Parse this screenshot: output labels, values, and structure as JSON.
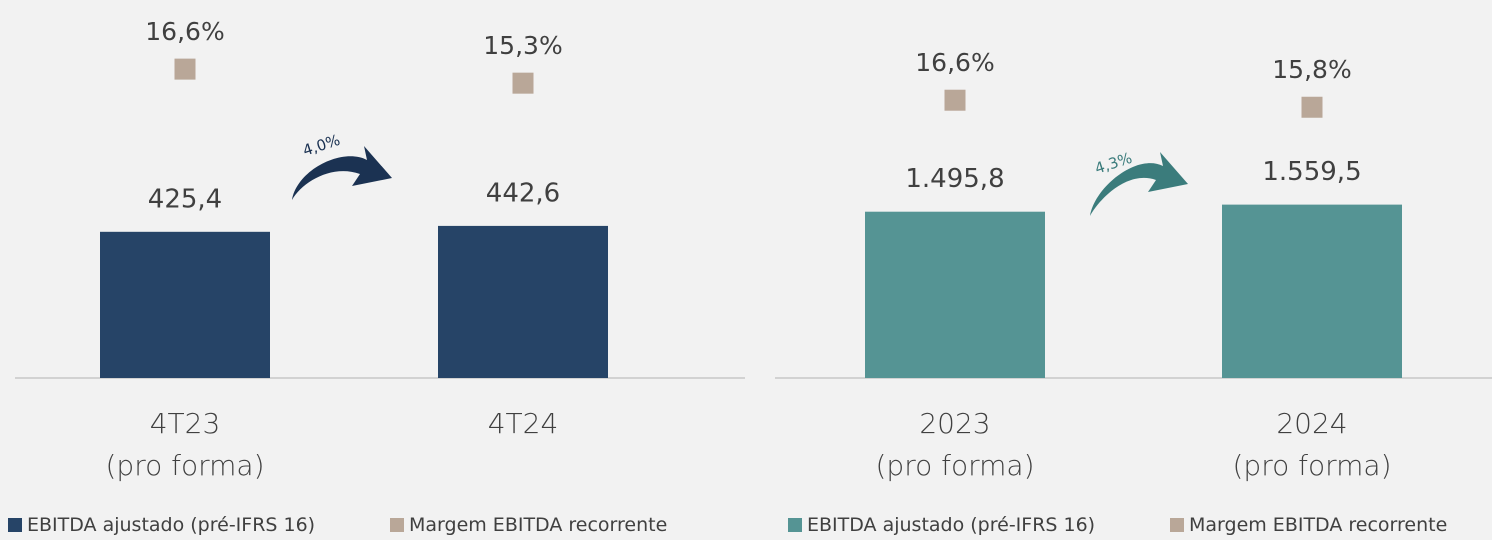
{
  "chart_data": [
    {
      "type": "bar",
      "categories": [
        "4T23\n(pro forma)",
        "4T24"
      ],
      "series": [
        {
          "name": "EBITDA ajustado (pré-IFRS 16)",
          "color": "#264467",
          "values": [
            425.4,
            442.6
          ],
          "value_labels": [
            "425,4",
            "442,6"
          ]
        },
        {
          "name": "Margem EBITDA recorrente",
          "color": "#b9a798",
          "values": [
            16.6,
            15.3
          ],
          "value_labels": [
            "16,6%",
            "15,3%"
          ],
          "axis": "y2",
          "marker": "square"
        }
      ],
      "ylim": [
        0,
        1100
      ],
      "y2lim": [
        -12,
        23
      ],
      "annotation": "4,0%",
      "annotation_color": "#1b3252",
      "legend": "bottom-left"
    },
    {
      "type": "bar",
      "categories": [
        "2023\n(pro forma)",
        "2024\n(pro forma)"
      ],
      "series": [
        {
          "name": "EBITDA ajustado (pré-IFRS 16)",
          "color": "#559494",
          "values": [
            1495.8,
            1559.5
          ],
          "value_labels": [
            "1.495,8",
            "1.559,5"
          ]
        },
        {
          "name": "Margem EBITDA recorrente",
          "color": "#b9a798",
          "values": [
            16.6,
            15.8
          ],
          "value_labels": [
            "16,6%",
            "15,8%"
          ],
          "axis": "y2",
          "marker": "square"
        }
      ],
      "ylim": [
        0,
        3400
      ],
      "y2lim": [
        -15,
        28
      ],
      "annotation": "4,3%",
      "annotation_color": "#3b7c7c",
      "legend": "bottom-left"
    }
  ]
}
